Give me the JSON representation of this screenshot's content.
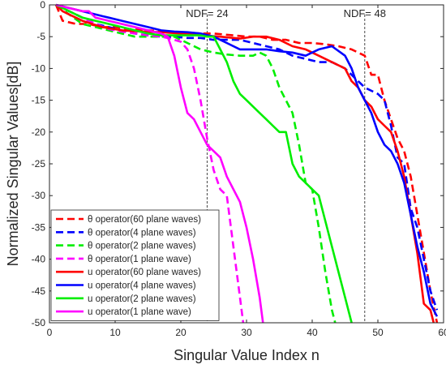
{
  "chart_data": {
    "type": "line",
    "xlabel": "Singular Value Index n",
    "ylabel": "Normalized Singular Values[dB]",
    "xlim": [
      0,
      60
    ],
    "ylim": [
      -50,
      0
    ],
    "xticks": [
      "0",
      "10",
      "20",
      "30",
      "40",
      "50",
      "60"
    ],
    "yticks": [
      "0",
      "-5",
      "-10",
      "-15",
      "-20",
      "-25",
      "-30",
      "-35",
      "-40",
      "-45",
      "-50"
    ],
    "grid": false,
    "legend_position": "bottom-left",
    "annotations": [
      {
        "text": "NDF= 24",
        "x": 24
      },
      {
        "text": "NDF= 48",
        "x": 48
      }
    ],
    "series": [
      {
        "name": "θ operator(60 plane waves)",
        "color": "#ff0000",
        "dash": true,
        "points": [
          [
            1,
            0
          ],
          [
            2,
            -2.5
          ],
          [
            4,
            -3
          ],
          [
            6,
            -3
          ],
          [
            8,
            -3.5
          ],
          [
            10,
            -3.5
          ],
          [
            12,
            -3.8
          ],
          [
            15,
            -4
          ],
          [
            18,
            -4.2
          ],
          [
            20,
            -4.3
          ],
          [
            23,
            -4.5
          ],
          [
            25,
            -4.5
          ],
          [
            28,
            -4.8
          ],
          [
            30,
            -5
          ],
          [
            32,
            -5
          ],
          [
            34,
            -5.5
          ],
          [
            36,
            -5.5
          ],
          [
            38,
            -6
          ],
          [
            40,
            -6
          ],
          [
            42,
            -6.2
          ],
          [
            44,
            -6.5
          ],
          [
            46,
            -7
          ],
          [
            48,
            -8
          ],
          [
            49,
            -11
          ],
          [
            50,
            -11
          ],
          [
            51,
            -15
          ],
          [
            52,
            -18
          ],
          [
            53,
            -21
          ],
          [
            54,
            -23
          ],
          [
            55,
            -27
          ],
          [
            56,
            -33
          ],
          [
            57,
            -39
          ],
          [
            58,
            -45
          ],
          [
            59,
            -50
          ]
        ]
      },
      {
        "name": "θ operator(4 plane waves)",
        "color": "#0000ff",
        "dash": true,
        "points": [
          [
            1,
            0
          ],
          [
            3,
            -1
          ],
          [
            5,
            -2
          ],
          [
            7,
            -3
          ],
          [
            9,
            -3.5
          ],
          [
            11,
            -4
          ],
          [
            13,
            -4.5
          ],
          [
            15,
            -4.8
          ],
          [
            17,
            -5
          ],
          [
            19,
            -5
          ],
          [
            21,
            -5.2
          ],
          [
            23,
            -5.2
          ],
          [
            25,
            -5.5
          ],
          [
            27,
            -5.5
          ],
          [
            29,
            -5.5
          ],
          [
            31,
            -6
          ],
          [
            33,
            -6.5
          ],
          [
            35,
            -7
          ],
          [
            37,
            -8
          ],
          [
            39,
            -8.5
          ],
          [
            41,
            -9
          ],
          [
            43,
            -9
          ],
          [
            45,
            -10
          ],
          [
            47,
            -12
          ],
          [
            48,
            -13
          ],
          [
            50,
            -14
          ],
          [
            51,
            -15
          ],
          [
            52,
            -19
          ],
          [
            53,
            -24
          ],
          [
            54,
            -25
          ],
          [
            55,
            -32
          ],
          [
            56,
            -35
          ],
          [
            57,
            -40
          ],
          [
            58,
            -45
          ],
          [
            59,
            -48
          ]
        ]
      },
      {
        "name": "θ operator(2 plane waves)",
        "color": "#00ee00",
        "dash": true,
        "points": [
          [
            1,
            0
          ],
          [
            3,
            -1.5
          ],
          [
            5,
            -3
          ],
          [
            7,
            -3.5
          ],
          [
            9,
            -4
          ],
          [
            11,
            -4.5
          ],
          [
            13,
            -5
          ],
          [
            15,
            -5
          ],
          [
            17,
            -5
          ],
          [
            19,
            -5
          ],
          [
            21,
            -6
          ],
          [
            23,
            -7
          ],
          [
            25,
            -7.5
          ],
          [
            27,
            -7.8
          ],
          [
            29,
            -8
          ],
          [
            31,
            -8
          ],
          [
            32,
            -7.5
          ],
          [
            33,
            -8
          ],
          [
            34,
            -10
          ],
          [
            35,
            -13
          ],
          [
            36,
            -15
          ],
          [
            37,
            -17
          ],
          [
            38,
            -22
          ],
          [
            39,
            -28
          ],
          [
            40,
            -29
          ],
          [
            41,
            -35
          ],
          [
            42,
            -42
          ],
          [
            43,
            -48
          ],
          [
            43.5,
            -50
          ]
        ]
      },
      {
        "name": "θ operator(1 plane wave)",
        "color": "#ff00ff",
        "dash": true,
        "points": [
          [
            1,
            0
          ],
          [
            3,
            -1
          ],
          [
            5,
            -2
          ],
          [
            7,
            -3
          ],
          [
            9,
            -3.8
          ],
          [
            11,
            -4.2
          ],
          [
            13,
            -4.5
          ],
          [
            15,
            -4.8
          ],
          [
            17,
            -5
          ],
          [
            18,
            -5.2
          ],
          [
            19,
            -5.5
          ],
          [
            20,
            -5.8
          ],
          [
            21,
            -7
          ],
          [
            22,
            -10
          ],
          [
            23,
            -15
          ],
          [
            24,
            -21
          ],
          [
            25,
            -26
          ],
          [
            26,
            -29
          ],
          [
            27,
            -30
          ],
          [
            28,
            -38
          ],
          [
            29,
            -46
          ],
          [
            29.5,
            -50
          ]
        ]
      },
      {
        "name": "u operator(60 plane waves)",
        "color": "#ff0000",
        "dash": false,
        "points": [
          [
            1,
            0
          ],
          [
            2,
            -1
          ],
          [
            3,
            -1.5
          ],
          [
            5,
            -2.5
          ],
          [
            8,
            -3.5
          ],
          [
            11,
            -4
          ],
          [
            14,
            -4.2
          ],
          [
            17,
            -4.3
          ],
          [
            20,
            -4.5
          ],
          [
            23,
            -4.8
          ],
          [
            26,
            -5
          ],
          [
            29,
            -5.3
          ],
          [
            31,
            -5
          ],
          [
            33,
            -5
          ],
          [
            35,
            -5.5
          ],
          [
            37,
            -6.5
          ],
          [
            39,
            -7
          ],
          [
            41,
            -8
          ],
          [
            43,
            -9
          ],
          [
            45,
            -10
          ],
          [
            46,
            -12
          ],
          [
            47,
            -13
          ],
          [
            48,
            -15
          ],
          [
            49,
            -16
          ],
          [
            50,
            -18
          ],
          [
            51,
            -19
          ],
          [
            52,
            -20
          ],
          [
            53,
            -23
          ],
          [
            54,
            -27
          ],
          [
            55,
            -33
          ],
          [
            56,
            -39
          ],
          [
            57,
            -47
          ],
          [
            58,
            -48
          ],
          [
            58.5,
            -50
          ]
        ]
      },
      {
        "name": "u operator(4 plane waves)",
        "color": "#0000ff",
        "dash": false,
        "points": [
          [
            1,
            0
          ],
          [
            3,
            -0.5
          ],
          [
            5,
            -1
          ],
          [
            7,
            -1.5
          ],
          [
            9,
            -2
          ],
          [
            11,
            -2.5
          ],
          [
            13,
            -3
          ],
          [
            15,
            -3.5
          ],
          [
            17,
            -4
          ],
          [
            19,
            -4.2
          ],
          [
            21,
            -4.3
          ],
          [
            23,
            -4.5
          ],
          [
            25,
            -5
          ],
          [
            27,
            -6
          ],
          [
            29,
            -7
          ],
          [
            31,
            -7
          ],
          [
            33,
            -7
          ],
          [
            35,
            -7.3
          ],
          [
            37,
            -7.5
          ],
          [
            39,
            -8
          ],
          [
            41,
            -7
          ],
          [
            43,
            -6.5
          ],
          [
            45,
            -8
          ],
          [
            46,
            -10
          ],
          [
            47,
            -13
          ],
          [
            48,
            -15
          ],
          [
            49,
            -17
          ],
          [
            50,
            -20
          ],
          [
            51,
            -22
          ],
          [
            52,
            -23
          ],
          [
            53,
            -25
          ],
          [
            54,
            -28
          ],
          [
            55,
            -33
          ],
          [
            56,
            -38
          ],
          [
            57,
            -42
          ],
          [
            58,
            -47
          ],
          [
            59,
            -49
          ]
        ]
      },
      {
        "name": "u operator(2 plane waves)",
        "color": "#00ee00",
        "dash": false,
        "points": [
          [
            1,
            0
          ],
          [
            3,
            -1
          ],
          [
            5,
            -2
          ],
          [
            7,
            -2.5
          ],
          [
            9,
            -3
          ],
          [
            11,
            -3.5
          ],
          [
            13,
            -4
          ],
          [
            15,
            -4.5
          ],
          [
            17,
            -4.8
          ],
          [
            19,
            -4.8
          ],
          [
            21,
            -4.8
          ],
          [
            23,
            -4.8
          ],
          [
            24,
            -5
          ],
          [
            25,
            -5
          ],
          [
            26,
            -7
          ],
          [
            27,
            -9
          ],
          [
            28,
            -12
          ],
          [
            29,
            -14
          ],
          [
            30,
            -15
          ],
          [
            31,
            -16
          ],
          [
            32,
            -17
          ],
          [
            33,
            -18
          ],
          [
            34,
            -19
          ],
          [
            35,
            -20
          ],
          [
            36,
            -20
          ],
          [
            37,
            -25
          ],
          [
            38,
            -27
          ],
          [
            39,
            -28
          ],
          [
            40,
            -29
          ],
          [
            41,
            -30
          ],
          [
            42,
            -34
          ],
          [
            43,
            -38
          ],
          [
            44,
            -42
          ],
          [
            45,
            -46
          ],
          [
            46,
            -50
          ]
        ]
      },
      {
        "name": "u operator(1 plane wave)",
        "color": "#ff00ff",
        "dash": false,
        "points": [
          [
            1,
            0
          ],
          [
            3,
            -0.5
          ],
          [
            5,
            -1
          ],
          [
            6,
            -1
          ],
          [
            7,
            -2
          ],
          [
            9,
            -2.5
          ],
          [
            11,
            -3
          ],
          [
            13,
            -3.5
          ],
          [
            15,
            -4
          ],
          [
            17,
            -4.5
          ],
          [
            18,
            -5
          ],
          [
            19,
            -8
          ],
          [
            20,
            -13
          ],
          [
            21,
            -17
          ],
          [
            22,
            -18
          ],
          [
            23,
            -20
          ],
          [
            24,
            -22
          ],
          [
            25,
            -23
          ],
          [
            26,
            -24
          ],
          [
            27,
            -27
          ],
          [
            28,
            -29
          ],
          [
            29,
            -31
          ],
          [
            30,
            -35
          ],
          [
            31,
            -40
          ],
          [
            32,
            -46
          ],
          [
            32.5,
            -50
          ]
        ]
      }
    ]
  }
}
